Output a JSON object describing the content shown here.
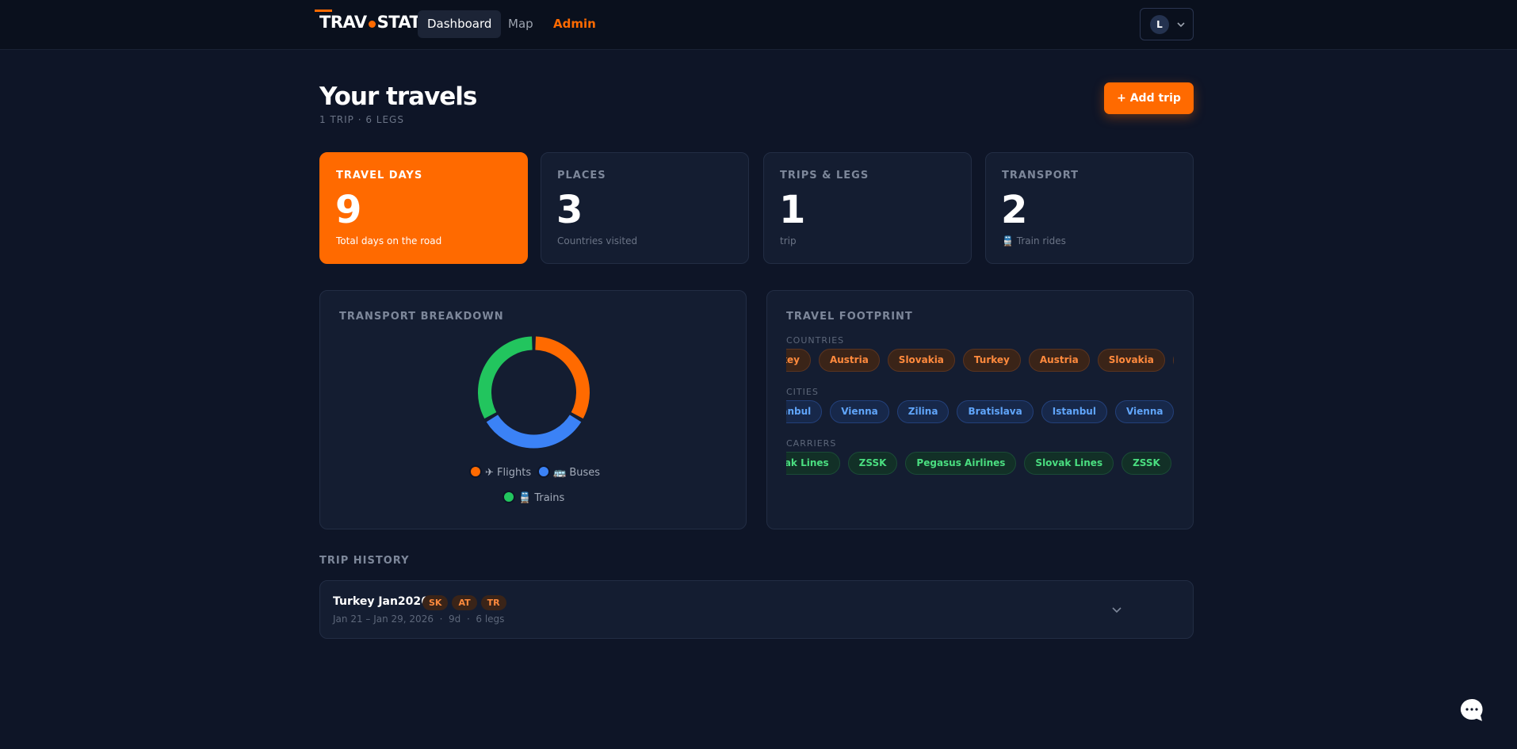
{
  "nav": {
    "logo_left": "TRAV",
    "logo_right": "STAT",
    "links": [
      "Dashboard",
      "Map",
      "Admin"
    ],
    "avatar": "L"
  },
  "header": {
    "title": "Your travels",
    "subtitle": "1 TRIP · 6 LEGS",
    "button": "+ Add trip"
  },
  "stats": [
    {
      "label": "TRAVEL DAYS",
      "value": "9",
      "note": "Total days on the road"
    },
    {
      "label": "PLACES",
      "value": "3",
      "note": "Countries visited"
    },
    {
      "label": "TRIPS & LEGS",
      "value": "1",
      "note": "trip"
    },
    {
      "label": "TRANSPORT",
      "value": "2",
      "note": "🚆 Train rides"
    }
  ],
  "transport_breakdown": {
    "type": "pie",
    "title": "TRANSPORT BREAKDOWN",
    "series": [
      {
        "name": "✈ Flights",
        "color": "#ff6a00",
        "value": 2
      },
      {
        "name": "🚌 Buses",
        "color": "#3b82f6",
        "value": 2
      },
      {
        "name": "🚆 Trains",
        "color": "#22c55e",
        "value": 2
      }
    ]
  },
  "footprint": {
    "title": "TRAVEL FOOTPRINT",
    "groups": [
      {
        "label": "COUNTRIES",
        "items": [
          "Turkey",
          "Austria",
          "Slovakia",
          "Turkey",
          "Austria",
          "Slovakia",
          "Turkey"
        ]
      },
      {
        "label": "CITIES",
        "items": [
          "Istanbul",
          "Vienna",
          "Zilina",
          "Bratislava",
          "Istanbul",
          "Vienna",
          "Zilina"
        ]
      },
      {
        "label": "CARRIERS",
        "items": [
          "Slovak Lines",
          "ZSSK",
          "Pegasus Airlines",
          "Slovak Lines",
          "ZSSK",
          "Pegasus Airlines"
        ]
      }
    ]
  },
  "history": {
    "title": "TRIP HISTORY",
    "trips": [
      {
        "name": "Turkey Jan2026",
        "tags": [
          "SK",
          "AT",
          "TR"
        ],
        "dates": "Jan 21 – Jan 29, 2026",
        "days": "9d",
        "legs": "6 legs"
      }
    ]
  }
}
